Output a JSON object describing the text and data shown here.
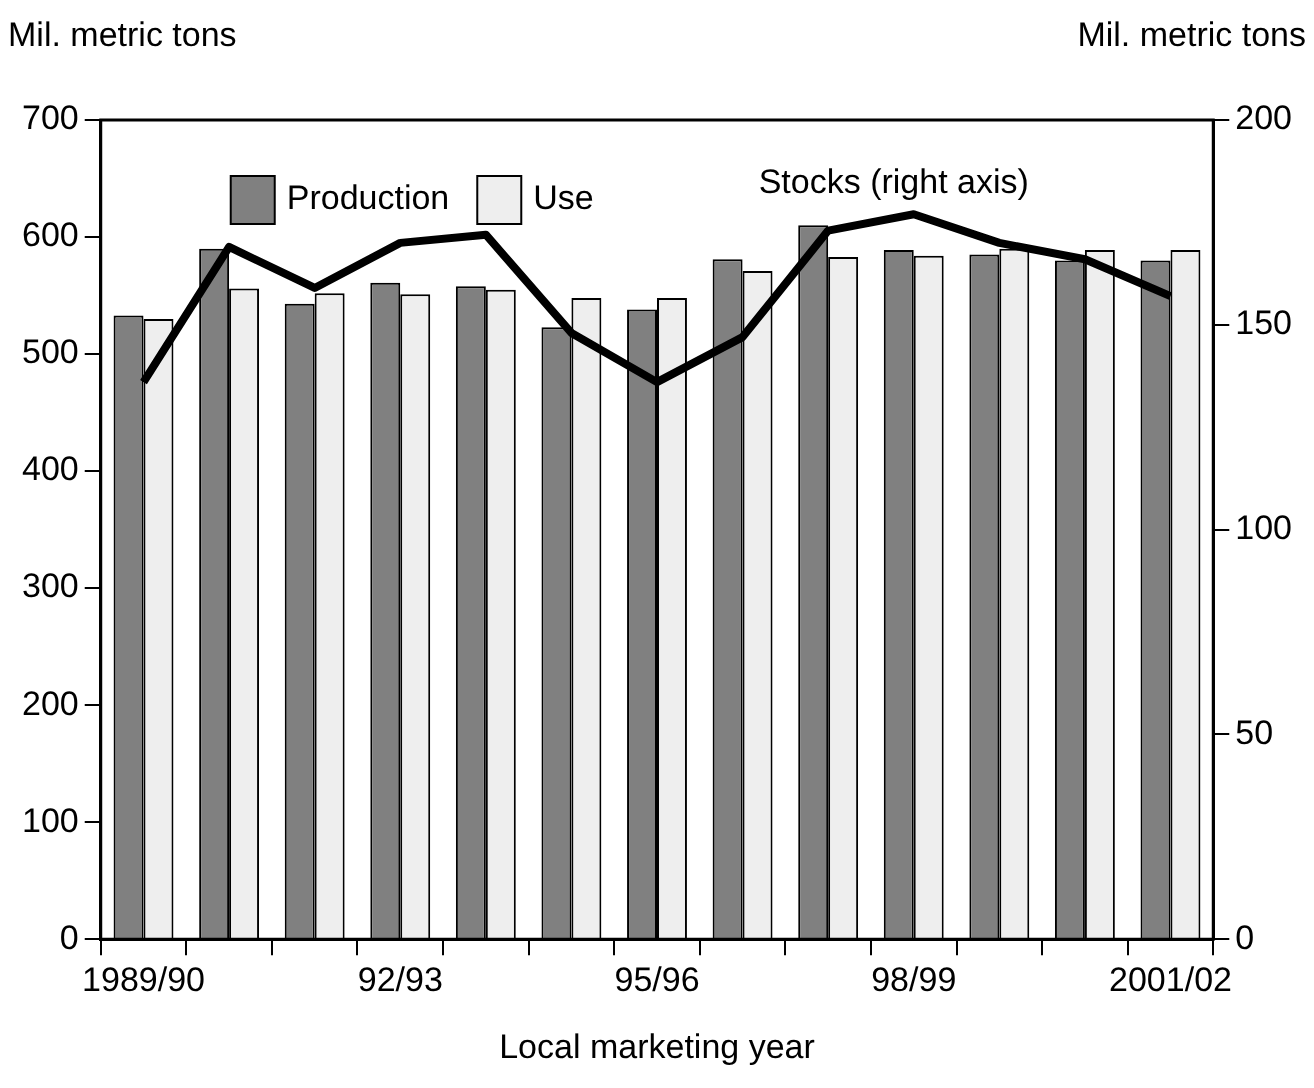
{
  "chart_data": {
    "type": "bar",
    "xlabel": "Local marketing year",
    "ylabel": "Mil. metric tons",
    "y2label": "Mil. metric tons",
    "categories": [
      "1989/90",
      null,
      null,
      "92/93",
      null,
      null,
      "95/96",
      null,
      null,
      "98/99",
      null,
      null,
      "2001/02"
    ],
    "series": [
      {
        "name": "Production",
        "color": "#808080",
        "values": [
          533,
          590,
          543,
          561,
          558,
          523,
          538,
          581,
          610,
          589,
          585,
          580,
          580
        ]
      },
      {
        "name": "Use",
        "color": "#eeeeee",
        "values": [
          530,
          556,
          552,
          551,
          555,
          548,
          548,
          571,
          583,
          584,
          590,
          589,
          589
        ]
      },
      {
        "name": "Stocks (right axis)",
        "type": "line",
        "axis": "y2",
        "color": "#000000",
        "values": [
          136,
          169,
          159,
          170,
          172,
          148,
          136,
          147,
          173,
          177,
          170,
          166,
          157
        ]
      }
    ],
    "ylim": [
      0,
      700
    ],
    "yticks": [
      0,
      100,
      200,
      300,
      400,
      500,
      600,
      700
    ],
    "y2lim": [
      0,
      200
    ],
    "y2ticks": [
      0,
      50,
      100,
      150,
      200
    ],
    "grid": false,
    "legend": "top left",
    "marker": "none",
    "line_style": "solid"
  }
}
